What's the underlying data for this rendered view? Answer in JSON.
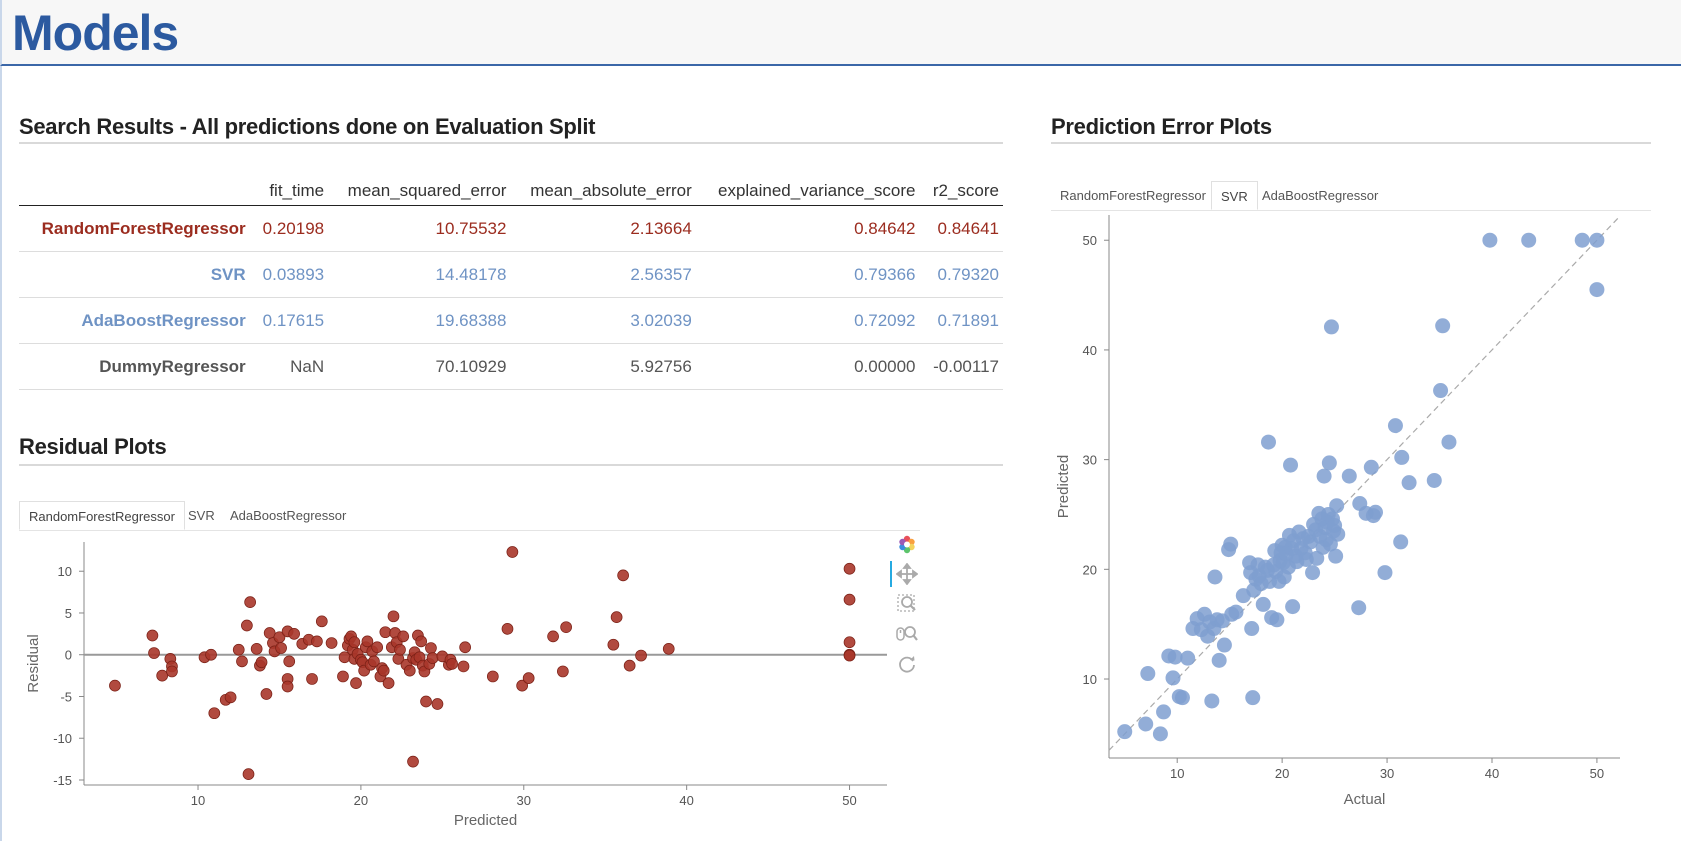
{
  "header": {
    "title": "Models"
  },
  "search": {
    "title": "Search Results - All predictions done on Evaluation Split",
    "columns": [
      "",
      "fit_time",
      "mean_squared_error",
      "mean_absolute_error",
      "explained_variance_score",
      "r2_score"
    ],
    "rows": [
      {
        "name": "RandomForestRegressor",
        "color": "#9b2c1f",
        "values": [
          "0.20198",
          "10.75532",
          "2.13664",
          "0.84642",
          "0.84641"
        ]
      },
      {
        "name": "SVR",
        "color": "#6f93c4",
        "values": [
          "0.03893",
          "14.48178",
          "2.56357",
          "0.79366",
          "0.79320"
        ]
      },
      {
        "name": "AdaBoostRegressor",
        "color": "#6f93c4",
        "values": [
          "0.17615",
          "19.68388",
          "3.02039",
          "0.72092",
          "0.71891"
        ]
      },
      {
        "name": "DummyRegressor",
        "color": "#555555",
        "values": [
          "NaN",
          "70.10929",
          "5.92756",
          "0.00000",
          "-0.00117"
        ]
      }
    ]
  },
  "residual": {
    "title": "Residual Plots",
    "tabs": [
      "RandomForestRegressor",
      "SVR",
      "AdaBoostRegressor"
    ],
    "active_tab": 0,
    "toolbar": [
      "bokeh-logo-icon",
      "pan-icon",
      "box-zoom-icon",
      "wheel-zoom-icon",
      "reset-icon"
    ]
  },
  "prediction": {
    "title": "Prediction Error Plots",
    "tabs": [
      "RandomForestRegressor",
      "SVR",
      "AdaBoostRegressor"
    ],
    "active_tab": 1
  },
  "colors": {
    "residual_points": "#a8362a",
    "prediction_points": "#7f9fd0",
    "accent": "#2c5aa0"
  },
  "chart_data": [
    {
      "type": "scatter",
      "title": "",
      "xlabel": "Predicted",
      "ylabel": "Residual",
      "xlim": [
        3,
        52.3
      ],
      "ylim": [
        -15.6,
        13.5
      ],
      "xticks": [
        10,
        20,
        30,
        40,
        50
      ],
      "yticks": [
        10,
        5,
        0,
        -5,
        -10,
        -15
      ],
      "grid": false,
      "reference_line_y": 0,
      "points": [
        [
          4.9,
          -3.7
        ],
        [
          7.2,
          2.3
        ],
        [
          7.3,
          0.2
        ],
        [
          7.8,
          -2.5
        ],
        [
          8.3,
          -0.5
        ],
        [
          8.4,
          -1.4
        ],
        [
          8.4,
          -2.0
        ],
        [
          10.4,
          -0.3
        ],
        [
          10.8,
          0.0
        ],
        [
          11.0,
          -7.0
        ],
        [
          11.7,
          -5.4
        ],
        [
          12.0,
          -5.1
        ],
        [
          12.5,
          0.6
        ],
        [
          12.7,
          -0.8
        ],
        [
          13.0,
          3.5
        ],
        [
          13.1,
          -14.3
        ],
        [
          13.2,
          6.3
        ],
        [
          13.6,
          0.7
        ],
        [
          13.8,
          -1.3
        ],
        [
          13.9,
          -0.9
        ],
        [
          14.2,
          -4.7
        ],
        [
          14.4,
          2.6
        ],
        [
          14.6,
          1.4
        ],
        [
          14.7,
          0.4
        ],
        [
          15.0,
          2.1
        ],
        [
          15.1,
          0.8
        ],
        [
          15.5,
          2.8
        ],
        [
          15.5,
          -2.9
        ],
        [
          15.6,
          -0.8
        ],
        [
          15.5,
          -3.8
        ],
        [
          15.9,
          2.5
        ],
        [
          16.4,
          1.3
        ],
        [
          16.8,
          1.8
        ],
        [
          17.0,
          -2.9
        ],
        [
          17.3,
          1.6
        ],
        [
          17.6,
          4.0
        ],
        [
          18.2,
          1.4
        ],
        [
          18.9,
          -2.6
        ],
        [
          19.0,
          -0.3
        ],
        [
          19.2,
          1.1
        ],
        [
          19.3,
          1.9
        ],
        [
          19.4,
          2.2
        ],
        [
          19.5,
          0.6
        ],
        [
          19.6,
          -0.5
        ],
        [
          19.6,
          1.5
        ],
        [
          19.7,
          -3.4
        ],
        [
          19.8,
          0.1
        ],
        [
          20.0,
          -0.6
        ],
        [
          20.1,
          -0.9
        ],
        [
          20.2,
          -1.9
        ],
        [
          20.3,
          0.9
        ],
        [
          20.4,
          1.6
        ],
        [
          20.6,
          -1.2
        ],
        [
          20.7,
          0.4
        ],
        [
          20.8,
          -0.8
        ],
        [
          21.0,
          0.9
        ],
        [
          21.2,
          -2.6
        ],
        [
          21.3,
          -1.6
        ],
        [
          21.4,
          -1.9
        ],
        [
          21.5,
          2.7
        ],
        [
          21.7,
          -3.4
        ],
        [
          21.9,
          0.9
        ],
        [
          22.0,
          4.6
        ],
        [
          22.1,
          2.6
        ],
        [
          22.2,
          1.5
        ],
        [
          22.3,
          -0.5
        ],
        [
          22.4,
          0.6
        ],
        [
          22.6,
          2.2
        ],
        [
          22.8,
          -1.2
        ],
        [
          23.0,
          -1.9
        ],
        [
          23.2,
          -0.4
        ],
        [
          23.3,
          0.3
        ],
        [
          23.4,
          -0.6
        ],
        [
          23.5,
          2.3
        ],
        [
          23.6,
          -0.3
        ],
        [
          23.7,
          1.6
        ],
        [
          23.8,
          -1.3
        ],
        [
          23.9,
          -2.0
        ],
        [
          24.0,
          -5.6
        ],
        [
          24.2,
          -1.1
        ],
        [
          24.3,
          0.8
        ],
        [
          24.4,
          -0.4
        ],
        [
          23.2,
          -12.8
        ],
        [
          24.7,
          -5.9
        ],
        [
          25.0,
          -0.2
        ],
        [
          25.4,
          -1.2
        ],
        [
          25.5,
          -0.6
        ],
        [
          25.6,
          -1.1
        ],
        [
          26.3,
          -1.4
        ],
        [
          26.4,
          0.9
        ],
        [
          28.1,
          -2.6
        ],
        [
          29.0,
          3.1
        ],
        [
          29.3,
          12.3
        ],
        [
          29.9,
          -3.7
        ],
        [
          30.3,
          -2.8
        ],
        [
          31.8,
          2.2
        ],
        [
          32.4,
          -2.0
        ],
        [
          32.6,
          3.3
        ],
        [
          35.5,
          1.2
        ],
        [
          35.7,
          4.5
        ],
        [
          36.1,
          9.5
        ],
        [
          36.5,
          -1.3
        ],
        [
          37.2,
          -0.1
        ],
        [
          38.9,
          0.7
        ],
        [
          50.0,
          10.3
        ],
        [
          50.0,
          6.6
        ],
        [
          50.0,
          1.5
        ],
        [
          50.0,
          0.0
        ],
        [
          50.0,
          -0.1
        ]
      ]
    },
    {
      "type": "scatter",
      "title": "",
      "xlabel": "Actual",
      "ylabel": "Predicted",
      "xlim": [
        3.5,
        52.2
      ],
      "ylim": [
        2.8,
        52.3
      ],
      "xticks": [
        10,
        20,
        30,
        40,
        50
      ],
      "yticks": [
        50,
        40,
        30,
        20,
        10
      ],
      "grid": false,
      "identity_line": true,
      "points": [
        [
          5.0,
          5.2
        ],
        [
          7.0,
          5.9
        ],
        [
          8.4,
          5.0
        ],
        [
          7.2,
          10.5
        ],
        [
          8.7,
          7.0
        ],
        [
          9.2,
          12.1
        ],
        [
          9.6,
          10.1
        ],
        [
          9.8,
          12.0
        ],
        [
          10.2,
          8.4
        ],
        [
          10.5,
          8.3
        ],
        [
          11.0,
          11.9
        ],
        [
          11.5,
          14.6
        ],
        [
          11.9,
          15.5
        ],
        [
          12.3,
          14.5
        ],
        [
          12.6,
          15.9
        ],
        [
          12.9,
          13.9
        ],
        [
          13.1,
          15.2
        ],
        [
          13.3,
          8.0
        ],
        [
          13.5,
          14.6
        ],
        [
          13.6,
          19.3
        ],
        [
          13.8,
          15.4
        ],
        [
          14.0,
          11.7
        ],
        [
          14.3,
          15.3
        ],
        [
          14.5,
          13.1
        ],
        [
          14.9,
          21.8
        ],
        [
          15.1,
          22.3
        ],
        [
          15.2,
          15.9
        ],
        [
          15.6,
          16.1
        ],
        [
          16.3,
          17.6
        ],
        [
          16.9,
          20.6
        ],
        [
          17.0,
          19.7
        ],
        [
          17.1,
          14.6
        ],
        [
          17.2,
          8.3
        ],
        [
          17.3,
          18.1
        ],
        [
          17.5,
          19.1
        ],
        [
          17.7,
          20.4
        ],
        [
          17.8,
          19.4
        ],
        [
          18.0,
          18.7
        ],
        [
          18.2,
          16.8
        ],
        [
          18.4,
          20.2
        ],
        [
          18.6,
          19.9
        ],
        [
          18.7,
          31.6
        ],
        [
          18.8,
          18.9
        ],
        [
          19.0,
          15.6
        ],
        [
          19.2,
          20.4
        ],
        [
          19.3,
          21.7
        ],
        [
          19.4,
          19.8
        ],
        [
          19.5,
          15.4
        ],
        [
          19.7,
          18.9
        ],
        [
          19.8,
          20.8
        ],
        [
          19.9,
          21.5
        ],
        [
          20.0,
          22.2
        ],
        [
          20.1,
          20.6
        ],
        [
          20.2,
          19.3
        ],
        [
          20.3,
          22.0
        ],
        [
          20.4,
          21.4
        ],
        [
          20.6,
          20.2
        ],
        [
          20.7,
          23.1
        ],
        [
          20.8,
          29.5
        ],
        [
          20.9,
          21.9
        ],
        [
          21.0,
          16.6
        ],
        [
          21.1,
          22.6
        ],
        [
          21.3,
          21.2
        ],
        [
          21.4,
          20.7
        ],
        [
          21.6,
          23.4
        ],
        [
          21.8,
          21.9
        ],
        [
          22.0,
          22.8
        ],
        [
          22.2,
          21.5
        ],
        [
          22.3,
          20.9
        ],
        [
          22.5,
          23.0
        ],
        [
          22.7,
          22.5
        ],
        [
          22.9,
          19.7
        ],
        [
          23.0,
          24.1
        ],
        [
          23.2,
          23.6
        ],
        [
          23.3,
          21.0
        ],
        [
          23.5,
          25.1
        ],
        [
          23.6,
          23.0
        ],
        [
          23.8,
          24.6
        ],
        [
          23.9,
          22.0
        ],
        [
          24.0,
          28.5
        ],
        [
          24.1,
          23.8
        ],
        [
          24.2,
          22.7
        ],
        [
          24.3,
          24.3
        ],
        [
          24.4,
          25.0
        ],
        [
          24.5,
          29.7
        ],
        [
          24.6,
          22.3
        ],
        [
          24.7,
          42.1
        ],
        [
          24.8,
          24.6
        ],
        [
          24.9,
          23.5
        ],
        [
          25.0,
          24.0
        ],
        [
          25.1,
          21.2
        ],
        [
          25.2,
          25.8
        ],
        [
          25.3,
          23.2
        ],
        [
          26.4,
          28.5
        ],
        [
          27.3,
          16.5
        ],
        [
          27.4,
          26.0
        ],
        [
          28.0,
          25.1
        ],
        [
          28.5,
          29.3
        ],
        [
          28.7,
          24.9
        ],
        [
          28.9,
          25.2
        ],
        [
          29.8,
          19.7
        ],
        [
          30.8,
          33.1
        ],
        [
          31.3,
          22.5
        ],
        [
          31.4,
          30.2
        ],
        [
          32.1,
          27.9
        ],
        [
          34.5,
          28.1
        ],
        [
          35.1,
          36.3
        ],
        [
          35.3,
          42.2
        ],
        [
          35.9,
          31.6
        ],
        [
          39.8,
          50.0
        ],
        [
          43.5,
          50.0
        ],
        [
          48.6,
          50.0
        ],
        [
          50.0,
          50.0
        ],
        [
          50.0,
          45.5
        ]
      ]
    }
  ]
}
